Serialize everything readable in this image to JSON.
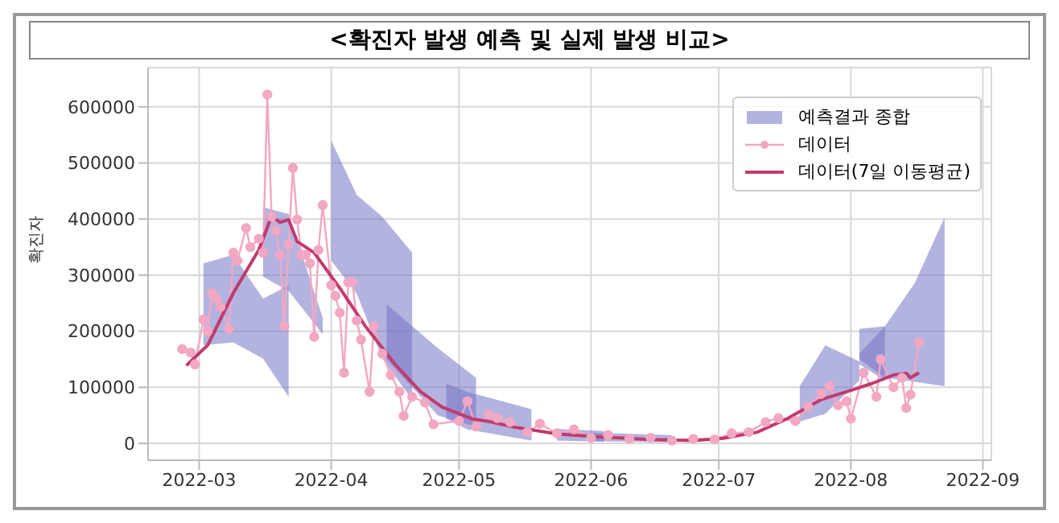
{
  "chart_data": {
    "type": "line",
    "title": "<확진자 발생 예측 및 실제 발생 비교>",
    "ylabel": "확진자",
    "xlim": [
      "2022-02-17",
      "2022-09-03"
    ],
    "xticks": [
      "2022-03",
      "2022-04",
      "2022-05",
      "2022-06",
      "2022-07",
      "2022-08",
      "2022-09"
    ],
    "ylim": [
      -30000,
      670000
    ],
    "yticks": [
      0,
      100000,
      200000,
      300000,
      400000,
      500000,
      600000
    ],
    "grid": true,
    "legend": "top right",
    "series": [
      {
        "type": "area",
        "name": "예측결과 종합",
        "color": "#7474c4",
        "x": [
          "2022-03-02",
          "2022-03-09",
          "2022-03-16",
          "2022-03-22"
        ],
        "values": [
          null,
          null,
          null,
          null
        ],
        "lower": [
          175000,
          180000,
          151000,
          83000
        ],
        "upper": [
          321000,
          336000,
          258000,
          282000
        ]
      },
      {
        "type": "area",
        "color": "#7474c4",
        "x": [
          "2022-03-16",
          "2022-03-22",
          "2022-03-30"
        ],
        "values": [
          null,
          null,
          null
        ],
        "lower": [
          297000,
          272000,
          195000
        ],
        "upper": [
          421000,
          409000,
          224000
        ]
      },
      {
        "type": "area",
        "color": "#7474c4",
        "x": [
          "2022-04-01",
          "2022-04-07",
          "2022-04-13",
          "2022-04-20"
        ],
        "values": [
          null,
          null,
          null,
          null
        ],
        "lower": [
          326000,
          267000,
          151000,
          78000
        ],
        "upper": [
          540000,
          443000,
          404000,
          340000
        ]
      },
      {
        "type": "area",
        "color": "#7474c4",
        "x": [
          "2022-04-14",
          "2022-04-26",
          "2022-05-05"
        ],
        "values": [
          null,
          null,
          null
        ],
        "lower": [
          150000,
          50000,
          30000
        ],
        "upper": [
          248000,
          170000,
          117000
        ]
      },
      {
        "type": "area",
        "color": "#7474c4",
        "x": [
          "2022-04-28",
          "2022-05-03",
          "2022-05-18"
        ],
        "values": [
          null,
          null,
          null
        ],
        "lower": [
          44000,
          25000,
          5000
        ],
        "upper": [
          107000,
          92000,
          61000
        ]
      },
      {
        "type": "area",
        "color": "#7474c4",
        "x": [
          "2022-05-24",
          "2022-06-04"
        ],
        "values": [
          null,
          null
        ],
        "lower": [
          5000,
          3000
        ],
        "upper": [
          26000,
          22000
        ]
      },
      {
        "type": "area",
        "color": "#7474c4",
        "x": [
          "2022-06-01",
          "2022-06-20"
        ],
        "values": [
          null,
          null
        ],
        "lower": [
          4000,
          2000
        ],
        "upper": [
          19000,
          15000
        ]
      },
      {
        "type": "area",
        "color": "#7474c4",
        "x": [
          "2022-07-20",
          "2022-07-26",
          "2022-08-03"
        ],
        "values": [
          null,
          null,
          null
        ],
        "lower": [
          39000,
          53000,
          112000
        ],
        "upper": [
          102000,
          175000,
          146000
        ]
      },
      {
        "type": "area",
        "color": "#7474c4",
        "x": [
          "2022-08-03",
          "2022-08-09"
        ],
        "values": [
          null,
          null
        ],
        "lower": [
          141000,
          112000
        ],
        "upper": [
          204000,
          209000
        ]
      },
      {
        "type": "area",
        "color": "#7474c4",
        "x": [
          "2022-08-03",
          "2022-08-09",
          "2022-08-16",
          "2022-08-23"
        ],
        "values": [
          null,
          null,
          null,
          null
        ],
        "lower": [
          150000,
          117000,
          110000,
          102000
        ],
        "upper": [
          160000,
          209000,
          286000,
          403000
        ]
      },
      {
        "type": "line",
        "name": "데이터",
        "color": "#f2a7c3",
        "marker": "circle",
        "x": [
          "2022-02-25",
          "2022-02-27",
          "2022-02-28",
          "2022-03-02",
          "2022-03-03",
          "2022-03-04",
          "2022-03-05",
          "2022-03-06",
          "2022-03-08",
          "2022-03-09",
          "2022-03-10",
          "2022-03-12",
          "2022-03-13",
          "2022-03-15",
          "2022-03-16",
          "2022-03-17",
          "2022-03-18",
          "2022-03-19",
          "2022-03-20",
          "2022-03-21",
          "2022-03-22",
          "2022-03-23",
          "2022-03-24",
          "2022-03-25",
          "2022-03-26",
          "2022-03-27",
          "2022-03-28",
          "2022-03-29",
          "2022-03-30",
          "2022-04-01",
          "2022-04-02",
          "2022-04-03",
          "2022-04-04",
          "2022-04-05",
          "2022-04-06",
          "2022-04-07",
          "2022-04-08",
          "2022-04-10",
          "2022-04-11",
          "2022-04-13",
          "2022-04-15",
          "2022-04-17",
          "2022-04-18",
          "2022-04-20",
          "2022-04-23",
          "2022-04-25",
          "2022-05-01",
          "2022-05-03",
          "2022-05-05",
          "2022-05-08",
          "2022-05-10",
          "2022-05-13",
          "2022-05-17",
          "2022-05-20",
          "2022-05-24",
          "2022-05-28",
          "2022-06-01",
          "2022-06-05",
          "2022-06-10",
          "2022-06-15",
          "2022-06-20",
          "2022-06-25",
          "2022-06-30",
          "2022-07-04",
          "2022-07-08",
          "2022-07-12",
          "2022-07-15",
          "2022-07-19",
          "2022-07-22",
          "2022-07-25",
          "2022-07-27",
          "2022-07-29",
          "2022-07-31",
          "2022-08-01",
          "2022-08-04",
          "2022-08-07",
          "2022-08-08",
          "2022-08-11",
          "2022-08-13",
          "2022-08-14",
          "2022-08-15",
          "2022-08-17"
        ],
        "values": [
          168000,
          162000,
          141000,
          221000,
          200000,
          268000,
          258000,
          243000,
          204000,
          340000,
          326000,
          384000,
          350000,
          365000,
          340000,
          622000,
          404000,
          379000,
          336000,
          209000,
          355000,
          491000,
          399000,
          336000,
          336000,
          321000,
          190000,
          345000,
          425000,
          282000,
          263000,
          233000,
          126000,
          287000,
          287000,
          219000,
          185000,
          92000,
          209000,
          160000,
          122000,
          92000,
          49000,
          83000,
          73000,
          34000,
          40000,
          75000,
          30000,
          52000,
          45000,
          38000,
          20000,
          35000,
          18000,
          25000,
          10000,
          15000,
          8000,
          10000,
          5000,
          8000,
          7000,
          18000,
          20000,
          38000,
          45000,
          40000,
          65000,
          88000,
          102000,
          68000,
          75000,
          44000,
          126000,
          83000,
          150000,
          100000,
          117000,
          63000,
          87000,
          180000
        ]
      },
      {
        "name": "데이터(7일 이동평균)",
        "color": "#c23a6e",
        "marker": "none",
        "x": [
          "2022-02-26",
          "2022-03-03",
          "2022-03-09",
          "2022-03-15",
          "2022-03-18",
          "2022-03-20",
          "2022-03-22",
          "2022-03-24",
          "2022-03-28",
          "2022-04-03",
          "2022-04-09",
          "2022-04-16",
          "2022-04-22",
          "2022-04-27",
          "2022-05-04",
          "2022-05-08",
          "2022-05-14",
          "2022-05-24",
          "2022-06-02",
          "2022-06-15",
          "2022-06-25",
          "2022-07-02",
          "2022-07-10",
          "2022-07-17",
          "2022-07-25",
          "2022-07-31",
          "2022-08-06",
          "2022-08-11",
          "2022-08-14",
          "2022-08-15",
          "2022-08-17"
        ],
        "values": [
          139000,
          175000,
          268000,
          345000,
          405000,
          394000,
          399000,
          360000,
          340000,
          277000,
          209000,
          141000,
          92000,
          65000,
          44000,
          39000,
          29000,
          17000,
          12000,
          7000,
          5000,
          9000,
          20000,
          44000,
          78000,
          92000,
          107000,
          122000,
          125000,
          117000,
          126000
        ]
      }
    ]
  }
}
